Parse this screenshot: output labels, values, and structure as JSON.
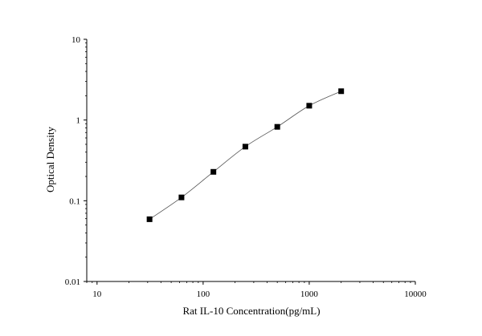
{
  "chart_data": {
    "type": "scatter",
    "xlabel": "Rat IL-10 Concentration(pg/mL)",
    "ylabel": "Optical Density",
    "xscale": "log",
    "yscale": "log",
    "xlim": [
      8,
      10000
    ],
    "ylim": [
      0.01,
      10
    ],
    "x_ticks": [
      "10",
      "100",
      "1000",
      "10000"
    ],
    "y_ticks": [
      "0.01",
      "0.1",
      "1",
      "10"
    ],
    "grid": false,
    "marker": "square",
    "fit_line": true,
    "colors": {
      "marker": "#000000",
      "line": "#555555",
      "axis": "#000000"
    },
    "series": [
      {
        "x": [
          31.25,
          62.5,
          125,
          250,
          500,
          1000,
          2000
        ],
        "y": [
          0.059,
          0.11,
          0.228,
          0.468,
          0.823,
          1.504,
          2.274
        ]
      }
    ]
  }
}
